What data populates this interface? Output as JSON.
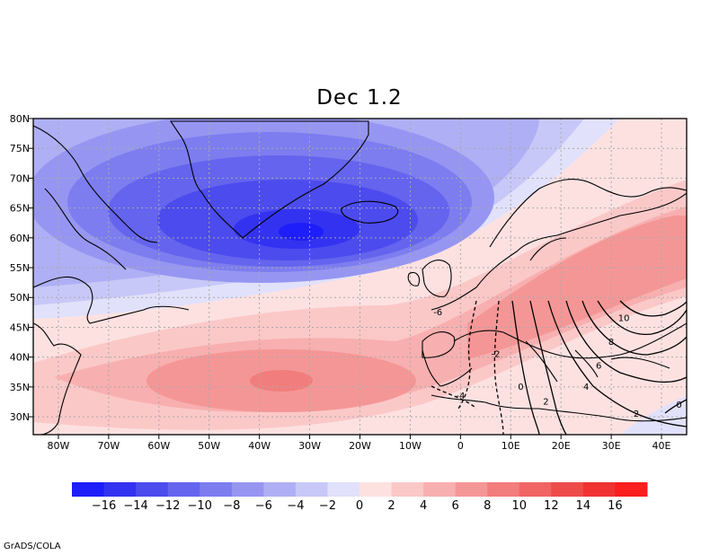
{
  "title": "Dec 1.2",
  "footer": "GrADS/COLA",
  "map": {
    "lon_range": [
      -85,
      45
    ],
    "lat_range": [
      27,
      80
    ],
    "lon_ticks": [
      {
        "v": -80,
        "label": "80W"
      },
      {
        "v": -70,
        "label": "70W"
      },
      {
        "v": -60,
        "label": "60W"
      },
      {
        "v": -50,
        "label": "50W"
      },
      {
        "v": -40,
        "label": "40W"
      },
      {
        "v": -30,
        "label": "30W"
      },
      {
        "v": -20,
        "label": "20W"
      },
      {
        "v": -10,
        "label": "10W"
      },
      {
        "v": 0,
        "label": "0"
      },
      {
        "v": 10,
        "label": "10E"
      },
      {
        "v": 20,
        "label": "20E"
      },
      {
        "v": 30,
        "label": "30E"
      },
      {
        "v": 40,
        "label": "40E"
      }
    ],
    "lat_ticks": [
      {
        "v": 30,
        "label": "30N"
      },
      {
        "v": 35,
        "label": "35N"
      },
      {
        "v": 40,
        "label": "40N"
      },
      {
        "v": 45,
        "label": "45N"
      },
      {
        "v": 50,
        "label": "50N"
      },
      {
        "v": 55,
        "label": "55N"
      },
      {
        "v": 60,
        "label": "60N"
      },
      {
        "v": 65,
        "label": "65N"
      },
      {
        "v": 70,
        "label": "70N"
      },
      {
        "v": 75,
        "label": "75N"
      },
      {
        "v": 80,
        "label": "80N"
      }
    ],
    "grid": "dotted",
    "shading": {
      "field_shape": "negative anomaly centred near 32W 61N (below -14); positive anomaly band from subtropical Atlantic (~8 near 34W 36N) to Scandinavia/Black Sea (~10)"
    },
    "contour_labels": [
      {
        "text": "-6",
        "lon": -4.5,
        "lat": 47.5
      },
      {
        "text": "-4",
        "lon": 0,
        "lat": 33.5
      },
      {
        "text": "-2",
        "lon": 7,
        "lat": 40.5
      },
      {
        "text": "0",
        "lon": 12,
        "lat": 35
      },
      {
        "text": "2",
        "lon": 17,
        "lat": 32.5
      },
      {
        "text": "2",
        "lon": 35,
        "lat": 30.5
      },
      {
        "text": "0",
        "lon": 43.5,
        "lat": 32
      },
      {
        "text": "4",
        "lon": 25,
        "lat": 35
      },
      {
        "text": "6",
        "lon": 27.5,
        "lat": 38.5
      },
      {
        "text": "8",
        "lon": 30,
        "lat": 42.5
      },
      {
        "text": "10",
        "lon": 32.5,
        "lat": 46.5
      }
    ]
  },
  "colorbar": {
    "colors": [
      "#1e1efa",
      "#3232f0",
      "#4b4bee",
      "#6464ee",
      "#7d7df0",
      "#9696f2",
      "#afaff5",
      "#c8c8f8",
      "#e1e1fb",
      "#fde1e1",
      "#fbc8c8",
      "#f8afaf",
      "#f59696",
      "#f27d7d",
      "#f06464",
      "#ee4b4b",
      "#f03232",
      "#fa1e1e"
    ],
    "labels": [
      "-16",
      "-14",
      "-12",
      "-10",
      "-8",
      "-6",
      "-4",
      "-2",
      "0",
      "2",
      "4",
      "6",
      "8",
      "10",
      "12",
      "14",
      "16"
    ]
  }
}
